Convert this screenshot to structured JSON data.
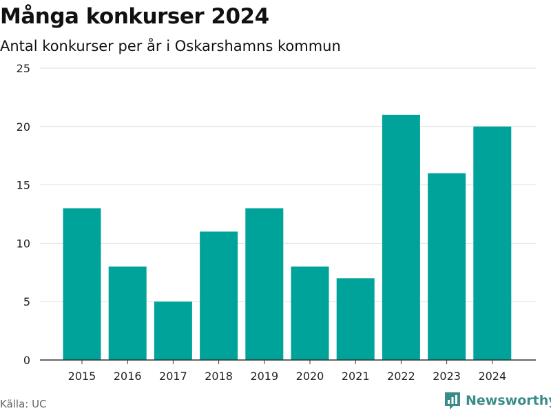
{
  "header": {
    "title": "Många konkurser 2024",
    "subtitle": "Antal konkurser per år i Oskarshamns kommun"
  },
  "footer": {
    "source": "Källa: UC",
    "brand": "Newsworthy",
    "brand_icon": "newsworthy-chart-logo-icon"
  },
  "colors": {
    "bar": "#00a39a",
    "grid": "#dddddd",
    "axis": "#333333",
    "brand": "#3a8c88"
  },
  "chart_data": {
    "type": "bar",
    "title": "Många konkurser 2024",
    "subtitle": "Antal konkurser per år i Oskarshamns kommun",
    "xlabel": "",
    "ylabel": "",
    "categories": [
      "2015",
      "2016",
      "2017",
      "2018",
      "2019",
      "2020",
      "2021",
      "2022",
      "2023",
      "2024"
    ],
    "values": [
      13,
      8,
      5,
      11,
      13,
      8,
      7,
      21,
      16,
      20
    ],
    "ylim": [
      0,
      25
    ],
    "yticks": [
      0,
      5,
      10,
      15,
      20,
      25
    ],
    "grid": true,
    "legend": "none"
  }
}
